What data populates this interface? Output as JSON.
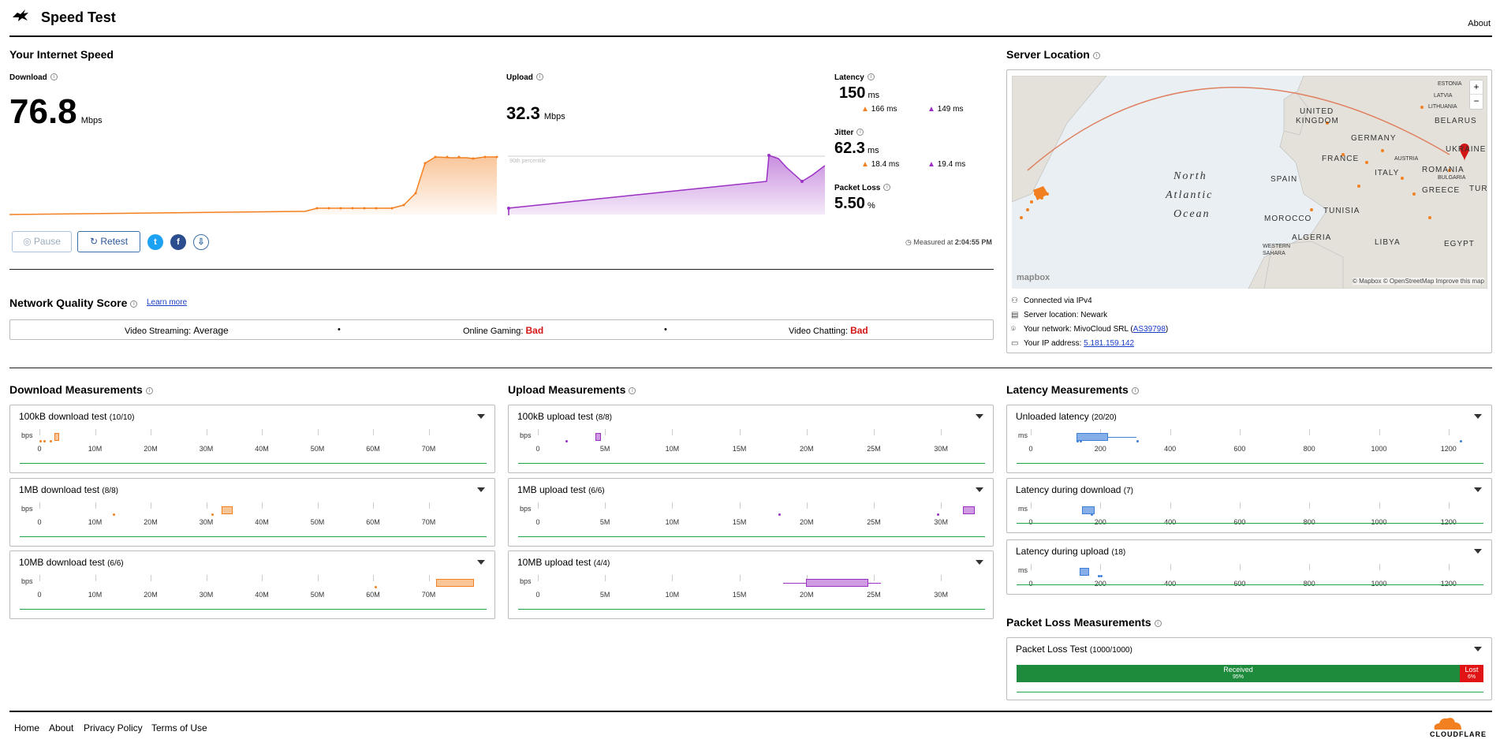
{
  "header": {
    "title": "Speed Test",
    "about": "About"
  },
  "speed": {
    "heading": "Your Internet Speed",
    "download": {
      "label": "Download",
      "value": "76.8",
      "unit": "Mbps"
    },
    "upload": {
      "label": "Upload",
      "value": "32.3",
      "unit": "Mbps"
    },
    "percentile_label": "90th percentile",
    "latency": {
      "label": "Latency",
      "value": "150",
      "unit": "ms",
      "down": "166 ms",
      "up": "149 ms"
    },
    "jitter": {
      "label": "Jitter",
      "value": "62.3",
      "unit": "ms",
      "down": "18.4 ms",
      "up": "19.4 ms"
    },
    "packet_loss": {
      "label": "Packet Loss",
      "value": "5.50",
      "unit": "%"
    },
    "pause": "Pause",
    "retest": "Retest",
    "measured_prefix": "Measured at ",
    "measured_time": "2:04:55 PM"
  },
  "nqs": {
    "heading": "Network Quality Score",
    "learn_more": "Learn more",
    "streaming_label": "Video Streaming:",
    "streaming_value": "Average",
    "gaming_label": "Online Gaming:",
    "gaming_value": "Bad",
    "chatting_label": "Video Chatting:",
    "chatting_value": "Bad",
    "bullet": "•"
  },
  "server": {
    "heading": "Server Location",
    "map": {
      "labels": [
        "North",
        "Atlantic",
        "Ocean",
        "UNITED",
        "KINGDOM",
        "GERMANY",
        "FRANCE",
        "BELARUS",
        "UKRAINE",
        "ROMANIA",
        "SPAIN",
        "ITALY",
        "GREECE",
        "TUR",
        "TUNISIA",
        "MOROCCO",
        "ALGERIA",
        "LIBYA",
        "EGYPT",
        "ESTONIA",
        "LATVIA",
        "LITHUANIA",
        "AUSTRIA",
        "BULGARIA",
        "WESTERN SAHARA"
      ],
      "attribution": "© Mapbox © OpenStreetMap  Improve this map",
      "logo": "mapbox",
      "zoom_in": "+",
      "zoom_out": "−"
    },
    "connected": "Connected via IPv4",
    "location": "Server location: Newark",
    "network_prefix": "Your network: MivoCloud SRL (",
    "network_asn": "AS39798",
    "network_suffix": ")",
    "ip_prefix": "Your IP address: ",
    "ip": "5.181.159.142"
  },
  "download_measurements": {
    "heading": "Download Measurements",
    "unit": "bps",
    "ticks": [
      "0",
      "10M",
      "20M",
      "30M",
      "40M",
      "50M",
      "60M",
      "70M"
    ],
    "tests": [
      {
        "title": "100kB download test",
        "count": "(10/10)"
      },
      {
        "title": "1MB download test",
        "count": "(8/8)"
      },
      {
        "title": "10MB download test",
        "count": "(6/6)"
      }
    ]
  },
  "upload_measurements": {
    "heading": "Upload Measurements",
    "unit": "bps",
    "ticks": [
      "0",
      "5M",
      "10M",
      "15M",
      "20M",
      "25M",
      "30M"
    ],
    "tests": [
      {
        "title": "100kB upload test",
        "count": "(8/8)"
      },
      {
        "title": "1MB upload test",
        "count": "(6/6)"
      },
      {
        "title": "10MB upload test",
        "count": "(4/4)"
      }
    ]
  },
  "latency_measurements": {
    "heading": "Latency Measurements",
    "unit": "ms",
    "ticks": [
      "0",
      "200",
      "400",
      "600",
      "800",
      "1000",
      "1200"
    ],
    "tests": [
      {
        "title": "Unloaded latency",
        "count": "(20/20)"
      },
      {
        "title": "Latency during download",
        "count": "(7)"
      },
      {
        "title": "Latency during upload",
        "count": "(18)"
      }
    ]
  },
  "packet_loss_measurements": {
    "heading": "Packet Loss Measurements",
    "title": "Packet Loss Test",
    "count": "(1000/1000)",
    "received_label": "Received",
    "received_pct": "95%",
    "received_fraction": 0.95,
    "lost_label": "Lost",
    "lost_pct": "6%"
  },
  "footer": {
    "home": "Home",
    "about": "About",
    "privacy": "Privacy Policy",
    "terms": "Terms of Use",
    "brand": "CLOUDFLARE"
  },
  "colors": {
    "download": "#f38020",
    "upload": "#9b30c4",
    "latency": "#3d7fd6",
    "good": "#1e8a3c",
    "bad": "#d41515",
    "link": "#1a3dc8"
  },
  "icons": [
    "cloudflare-rabbit-icon",
    "info-icon",
    "pause-icon",
    "refresh-icon",
    "twitter-icon",
    "facebook-icon",
    "download-icon",
    "clock-icon",
    "network-icon",
    "server-icon",
    "pin-icon",
    "card-icon",
    "chevron-down-icon",
    "cloudflare-logo-icon"
  ]
}
